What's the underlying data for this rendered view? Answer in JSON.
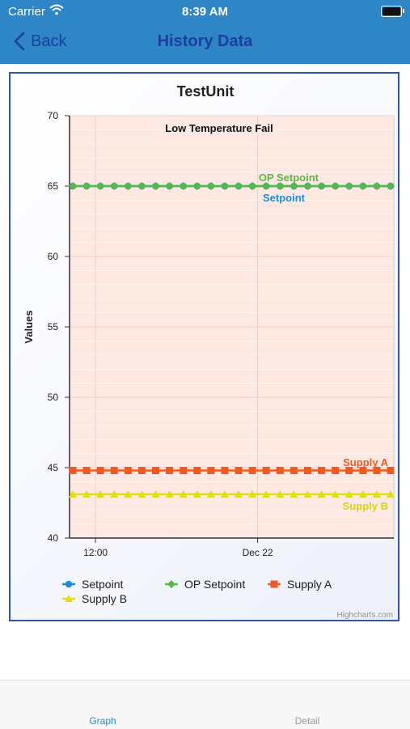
{
  "status_bar": {
    "carrier": "Carrier",
    "time": "8:39 AM"
  },
  "nav": {
    "back_label": "Back",
    "title": "History Data"
  },
  "tabs": [
    {
      "label": "Graph"
    },
    {
      "label": "Detail"
    }
  ],
  "chart_data": {
    "type": "line",
    "title": "TestUnit",
    "subtitle": "Low Temperature Fail",
    "ylabel": "Values",
    "xlabel": "",
    "ylim": [
      40,
      70
    ],
    "yticks": [
      40,
      45,
      50,
      55,
      60,
      65,
      70
    ],
    "xticks": [
      {
        "label": "12:00",
        "pos": 0.08
      },
      {
        "label": "Dec 22",
        "pos": 0.58
      }
    ],
    "legend_position": "bottom",
    "credit": "Highcharts.com",
    "points": 24,
    "series": [
      {
        "name": "Setpoint",
        "value": 65,
        "color": "#1f8dd6",
        "marker": "circle"
      },
      {
        "name": "OP Setpoint",
        "value": 65,
        "color": "#58b947",
        "marker": "diamond"
      },
      {
        "name": "Supply A",
        "value": 44.8,
        "color": "#f05a22",
        "marker": "square"
      },
      {
        "name": "Supply B",
        "value": 43.1,
        "color": "#e0de12",
        "marker": "triangle"
      }
    ]
  },
  "colors": {
    "nav_bg": "#2e86c6",
    "nav_text": "#1a3fa0",
    "plot_bg": "#fde9e2",
    "tab_active": "#2e86c6"
  }
}
